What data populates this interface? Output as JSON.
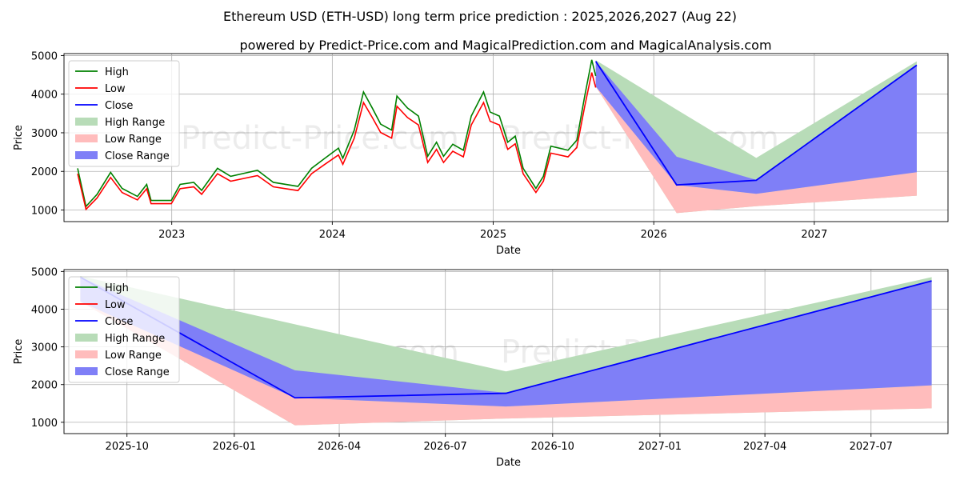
{
  "chart_data": [
    {
      "type": "area",
      "title": "Ethereum USD (ETH-USD) long term price prediction : 2025,2026,2027 (Aug 22)",
      "subtitle": "powered by Predict-Price.com and MagicalPrediction.com and MagicalAnalysis.com",
      "watermark": "Predict-Price.com",
      "xlabel": "Date",
      "ylabel": "Price",
      "xlim": [
        "2022-05-01",
        "2027-11-01"
      ],
      "ylim": [
        700,
        5050
      ],
      "x_ticks": [
        {
          "date": "2023-01-01",
          "label": "2023"
        },
        {
          "date": "2024-01-01",
          "label": "2024"
        },
        {
          "date": "2025-01-01",
          "label": "2025"
        },
        {
          "date": "2026-01-01",
          "label": "2026"
        },
        {
          "date": "2027-01-01",
          "label": "2027"
        }
      ],
      "y_ticks": [
        1000,
        2000,
        3000,
        4000,
        5000
      ],
      "grid": true,
      "legend_position": "top-left",
      "legend": [
        {
          "label": "High",
          "color": "#008000",
          "kind": "line"
        },
        {
          "label": "Low",
          "color": "#ff0000",
          "kind": "line"
        },
        {
          "label": "Close",
          "color": "#0000ff",
          "kind": "line"
        },
        {
          "label": "High Range",
          "color": "#b8dcb8",
          "kind": "patch"
        },
        {
          "label": "Low Range",
          "color": "#ffbcbc",
          "kind": "patch"
        },
        {
          "label": "Close Range",
          "color": "#7f7ff7",
          "kind": "patch"
        }
      ],
      "history": [
        {
          "date": "2022-06-01",
          "value": 2000
        },
        {
          "date": "2022-06-20",
          "value": 1050
        },
        {
          "date": "2022-07-15",
          "value": 1350
        },
        {
          "date": "2022-08-15",
          "value": 1900
        },
        {
          "date": "2022-09-10",
          "value": 1500
        },
        {
          "date": "2022-10-15",
          "value": 1300
        },
        {
          "date": "2022-11-05",
          "value": 1600
        },
        {
          "date": "2022-11-15",
          "value": 1200
        },
        {
          "date": "2022-12-31",
          "value": 1200
        },
        {
          "date": "2023-01-20",
          "value": 1600
        },
        {
          "date": "2023-02-20",
          "value": 1650
        },
        {
          "date": "2023-03-10",
          "value": 1450
        },
        {
          "date": "2023-04-15",
          "value": 2000
        },
        {
          "date": "2023-05-15",
          "value": 1800
        },
        {
          "date": "2023-07-15",
          "value": 1950
        },
        {
          "date": "2023-08-20",
          "value": 1650
        },
        {
          "date": "2023-10-15",
          "value": 1550
        },
        {
          "date": "2023-11-15",
          "value": 2000
        },
        {
          "date": "2023-12-15",
          "value": 2250
        },
        {
          "date": "2024-01-15",
          "value": 2500
        },
        {
          "date": "2024-01-25",
          "value": 2250
        },
        {
          "date": "2024-02-20",
          "value": 2950
        },
        {
          "date": "2024-03-12",
          "value": 3900
        },
        {
          "date": "2024-04-01",
          "value": 3500
        },
        {
          "date": "2024-04-20",
          "value": 3100
        },
        {
          "date": "2024-05-15",
          "value": 2950
        },
        {
          "date": "2024-05-27",
          "value": 3800
        },
        {
          "date": "2024-06-20",
          "value": 3500
        },
        {
          "date": "2024-07-15",
          "value": 3300
        },
        {
          "date": "2024-08-05",
          "value": 2300
        },
        {
          "date": "2024-08-25",
          "value": 2650
        },
        {
          "date": "2024-09-10",
          "value": 2300
        },
        {
          "date": "2024-10-01",
          "value": 2600
        },
        {
          "date": "2024-10-25",
          "value": 2450
        },
        {
          "date": "2024-11-12",
          "value": 3300
        },
        {
          "date": "2024-12-10",
          "value": 3900
        },
        {
          "date": "2024-12-25",
          "value": 3400
        },
        {
          "date": "2025-01-15",
          "value": 3300
        },
        {
          "date": "2025-02-03",
          "value": 2650
        },
        {
          "date": "2025-02-20",
          "value": 2800
        },
        {
          "date": "2025-03-10",
          "value": 2000
        },
        {
          "date": "2025-04-08",
          "value": 1500
        },
        {
          "date": "2025-04-25",
          "value": 1800
        },
        {
          "date": "2025-05-12",
          "value": 2550
        },
        {
          "date": "2025-06-20",
          "value": 2450
        },
        {
          "date": "2025-07-10",
          "value": 2700
        },
        {
          "date": "2025-07-28",
          "value": 3800
        },
        {
          "date": "2025-08-13",
          "value": 4700
        },
        {
          "date": "2025-08-22",
          "value": 4300
        }
      ],
      "prediction": {
        "dates": [
          "2025-08-22",
          "2026-02-22",
          "2026-08-22",
          "2027-08-22"
        ],
        "high_upper": [
          4880,
          3600,
          2350,
          4850
        ],
        "high_lower": [
          4600,
          2380,
          1780,
          4750
        ],
        "low_upper": [
          4450,
          1650,
          1420,
          1980
        ],
        "low_lower": [
          4200,
          920,
          1100,
          1370
        ],
        "close_upper": [
          4850,
          2380,
          1780,
          4750
        ],
        "close_lower": [
          4200,
          1650,
          1420,
          1980
        ],
        "close_line": [
          4850,
          1650,
          1770,
          4750
        ]
      }
    },
    {
      "type": "area",
      "xlabel": "Date",
      "ylabel": "Price",
      "xlim": [
        "2025-08-08",
        "2027-09-05"
      ],
      "ylim": [
        700,
        5050
      ],
      "watermark": "Predict-Price.com",
      "x_ticks": [
        {
          "date": "2025-10-01",
          "label": "2025-10"
        },
        {
          "date": "2026-01-01",
          "label": "2026-01"
        },
        {
          "date": "2026-04-01",
          "label": "2026-04"
        },
        {
          "date": "2026-07-01",
          "label": "2026-07"
        },
        {
          "date": "2026-10-01",
          "label": "2026-10"
        },
        {
          "date": "2027-01-01",
          "label": "2027-01"
        },
        {
          "date": "2027-04-01",
          "label": "2027-04"
        },
        {
          "date": "2027-07-01",
          "label": "2027-07"
        }
      ],
      "y_ticks": [
        1000,
        2000,
        3000,
        4000,
        5000
      ],
      "grid": true,
      "legend_position": "top-left",
      "legend": [
        {
          "label": "High",
          "color": "#008000",
          "kind": "line"
        },
        {
          "label": "Low",
          "color": "#ff0000",
          "kind": "line"
        },
        {
          "label": "Close",
          "color": "#0000ff",
          "kind": "line"
        },
        {
          "label": "High Range",
          "color": "#b8dcb8",
          "kind": "patch"
        },
        {
          "label": "Low Range",
          "color": "#ffbcbc",
          "kind": "patch"
        },
        {
          "label": "Close Range",
          "color": "#7f7ff7",
          "kind": "patch"
        }
      ],
      "prediction": {
        "dates": [
          "2025-08-22",
          "2026-02-22",
          "2026-08-22",
          "2027-08-22"
        ],
        "high_upper": [
          4880,
          3600,
          2350,
          4850
        ],
        "high_lower": [
          4600,
          2380,
          1780,
          4750
        ],
        "low_upper": [
          4450,
          1650,
          1420,
          1980
        ],
        "low_lower": [
          4200,
          920,
          1100,
          1370
        ],
        "close_upper": [
          4850,
          2380,
          1780,
          4750
        ],
        "close_lower": [
          4200,
          1650,
          1420,
          1980
        ],
        "close_line": [
          4850,
          1650,
          1770,
          4750
        ]
      }
    }
  ]
}
